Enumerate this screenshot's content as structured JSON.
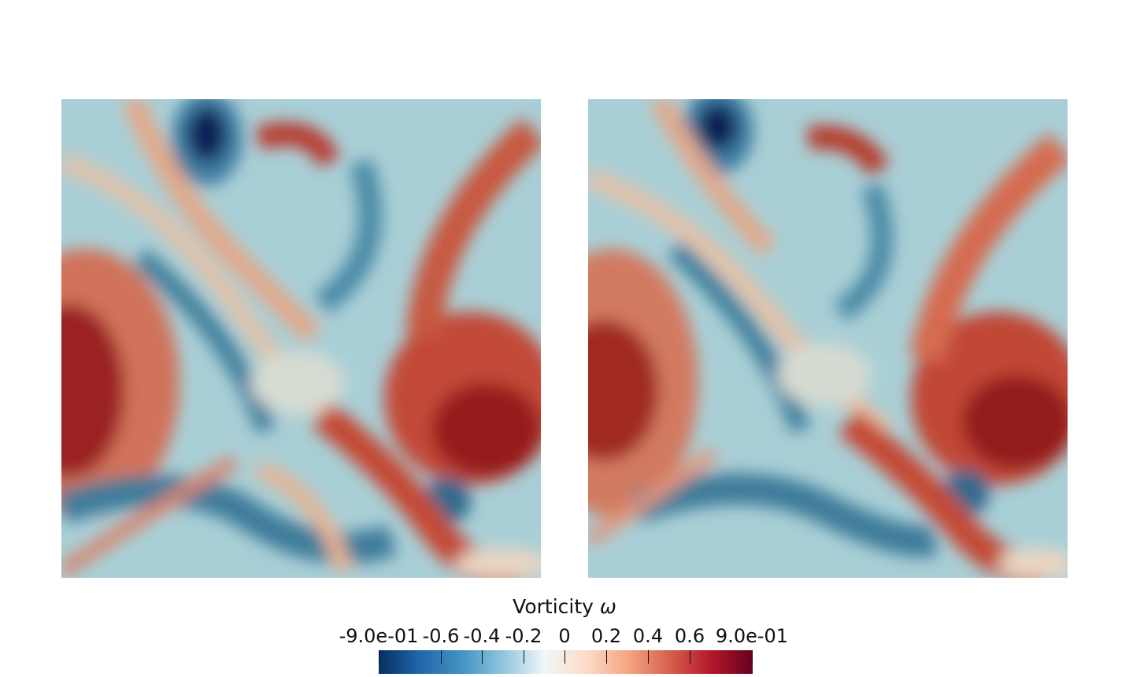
{
  "colorbar": {
    "title": "Vorticity",
    "symbol": "ω",
    "tick_labels": [
      "-9.0e-01",
      "-0.6",
      "-0.4",
      "-0.2",
      "0",
      "0.2",
      "0.4",
      "0.6",
      "9.0e-01"
    ],
    "tick_values": [
      -0.9,
      -0.6,
      -0.4,
      -0.2,
      0,
      0.2,
      0.4,
      0.6,
      0.9
    ],
    "range": [
      -0.9,
      0.9
    ],
    "colormap": [
      "#053061",
      "#2166ac",
      "#4393c3",
      "#92c5de",
      "#f0f7f8",
      "#fddbc7",
      "#f4a582",
      "#d6604d",
      "#b2182b",
      "#67001f"
    ]
  },
  "panels": [
    {
      "name": "left-vorticity-field"
    },
    {
      "name": "right-vorticity-field"
    }
  ],
  "colors": {
    "deep_blue": "#0a2a5e",
    "blue": "#3e7c9a",
    "light_blue": "#9ccad4",
    "neutral": "#eee5d3",
    "light_red": "#eab89a",
    "red": "#c9553e",
    "dark_red": "#8e1b1b"
  }
}
